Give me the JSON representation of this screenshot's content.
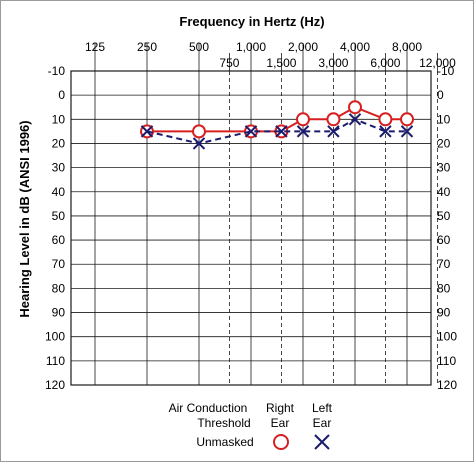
{
  "chart_data": {
    "type": "line",
    "title": "Frequency in Hertz (Hz)",
    "ylabel": "Hearing Level in dB (ANSI 1996)",
    "ylim": [
      -10,
      120
    ],
    "y_inverted": true,
    "y_ticks": [
      -10,
      0,
      10,
      20,
      30,
      40,
      50,
      60,
      70,
      80,
      90,
      100,
      110,
      120
    ],
    "x_top_labels": [
      "125",
      "250",
      "500",
      "1,000",
      "2,000",
      "4,000",
      "8,000"
    ],
    "x_inter_labels": [
      "750",
      "1,500",
      "3,000",
      "6,000",
      "12,000"
    ],
    "grid": true,
    "series": [
      {
        "name": "Right Ear",
        "marker": "O",
        "color": "#d62020",
        "line": "solid",
        "points": [
          {
            "x": "250",
            "y": 15
          },
          {
            "x": "500",
            "y": 15
          },
          {
            "x": "1,000",
            "y": 15
          },
          {
            "x": "1,500",
            "y": 15
          },
          {
            "x": "2,000",
            "y": 10
          },
          {
            "x": "3,000",
            "y": 10
          },
          {
            "x": "4,000",
            "y": 5
          },
          {
            "x": "6,000",
            "y": 10
          },
          {
            "x": "8,000",
            "y": 10
          }
        ]
      },
      {
        "name": "Left Ear",
        "marker": "X",
        "color": "#1c1c6e",
        "line": "dashed",
        "points": [
          {
            "x": "250",
            "y": 15
          },
          {
            "x": "500",
            "y": 20
          },
          {
            "x": "1,000",
            "y": 15
          },
          {
            "x": "1,500",
            "y": 15
          },
          {
            "x": "2,000",
            "y": 15
          },
          {
            "x": "3,000",
            "y": 15
          },
          {
            "x": "4,000",
            "y": 10
          },
          {
            "x": "6,000",
            "y": 15
          },
          {
            "x": "8,000",
            "y": 15
          }
        ]
      }
    ]
  },
  "legend": {
    "header_line1": "Air Conduction",
    "header_line2": "Threshold",
    "right_line1": "Right",
    "right_line2": "Ear",
    "left_line1": "Left",
    "left_line2": "Ear",
    "row_label": "Unmasked"
  }
}
